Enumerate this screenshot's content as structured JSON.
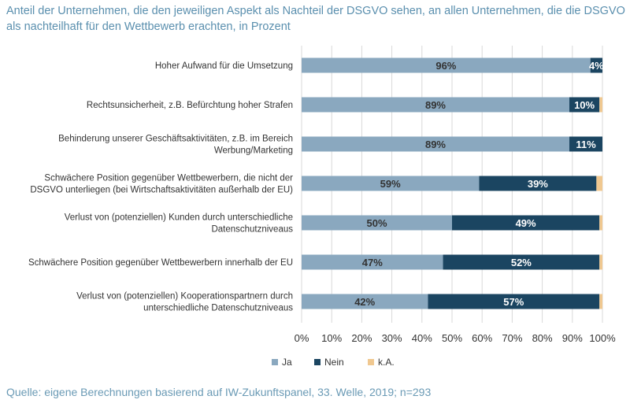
{
  "chart_data": {
    "type": "bar",
    "orientation": "horizontal",
    "stacked": true,
    "title": "Anteil der Unternehmen, die den jeweiligen Aspekt als Nachteil der DSGVO sehen, an allen Unternehmen, die die DSGVO als nachteilhaft für den Wettbewerb erachten, in Prozent",
    "categories": [
      [
        "Hoher Aufwand für die Umsetzung"
      ],
      [
        "Rechtsunsicherheit, z.B. Befürchtung hoher Strafen"
      ],
      [
        "Behinderung unserer Geschäftsaktivitäten, z.B. im Bereich",
        "Werbung/Marketing"
      ],
      [
        "Schwächere Position gegenüber Wettbewerbern, die nicht der",
        "DSGVO unterliegen (bei Wirtschaftsaktivitäten außerhalb der EU)"
      ],
      [
        "Verlust von (potenziellen) Kunden durch unterschiedliche",
        "Datenschutzniveaus"
      ],
      [
        "Schwächere Position gegenüber Wettbewerbern innerhalb der EU"
      ],
      [
        "Verlust von (potenziellen) Kooperationspartnern durch",
        "unterschiedliche Datenschutzniveaus"
      ]
    ],
    "series": [
      {
        "name": "Ja",
        "color": "#8aa8bf",
        "values": [
          96,
          89,
          89,
          59,
          50,
          47,
          42
        ]
      },
      {
        "name": "Nein",
        "color": "#1b4561",
        "values": [
          4,
          10,
          11,
          39,
          49,
          52,
          57
        ]
      },
      {
        "name": "k.A.",
        "color": "#f0c890",
        "values": [
          0,
          1,
          0,
          2,
          1,
          1,
          1
        ]
      }
    ],
    "xlim": [
      0,
      100
    ],
    "xticks": [
      "0%",
      "10%",
      "20%",
      "30%",
      "40%",
      "50%",
      "60%",
      "70%",
      "80%",
      "90%",
      "100%"
    ],
    "grid": true,
    "legend": "bottom"
  },
  "source": "Quelle: eigene Berechnungen basierend auf IW-Zukunftspanel, 33. Welle, 2019; n=293"
}
